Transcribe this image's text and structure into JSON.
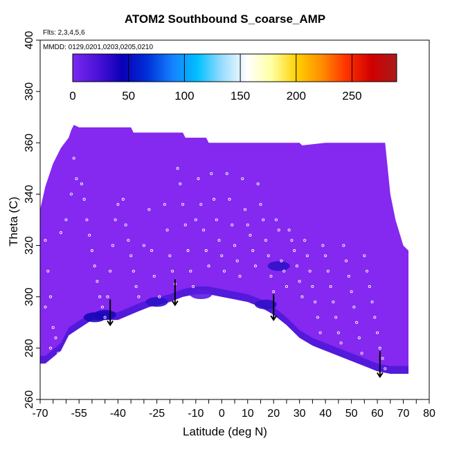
{
  "title": "ATOM2 Southbound S_coarse_AMP",
  "notes": {
    "flights": "Flts: 2,3,4,5,6",
    "dates": "MMDD: 0129,0201,0203,0205,0210"
  },
  "chart_data": {
    "type": "heatmap",
    "title": "ATOM2 Southbound S_coarse_AMP",
    "xlabel": "Latitude (deg N)",
    "ylabel": "Theta (C)",
    "xlim": [
      -70,
      80
    ],
    "ylim": [
      260,
      400
    ],
    "x_ticks": [
      "-70",
      "-65",
      "-60",
      "-55",
      "-50",
      "-45",
      "-40",
      "-35",
      "-30",
      "-25",
      "-20",
      "-15",
      "-10",
      "-5",
      "0",
      "5",
      "10",
      "15",
      "20",
      "25",
      "30",
      "35",
      "40",
      "45",
      "50",
      "55",
      "60",
      "65",
      "70",
      "75",
      "80"
    ],
    "x_tick_labels": [
      "-70",
      "",
      "",
      "-55",
      "",
      "",
      "-40",
      "",
      "",
      "-25",
      "",
      "",
      "-10",
      "",
      "0",
      "",
      "10",
      "",
      "20",
      "",
      "30",
      "",
      "40",
      "",
      "50",
      "",
      "60",
      "",
      "70",
      "",
      "80"
    ],
    "y_ticks": [
      260,
      280,
      300,
      320,
      340,
      360,
      380,
      400
    ],
    "colorbar": {
      "min": 0,
      "max": 290,
      "ticks": [
        0,
        50,
        100,
        150,
        200,
        250
      ],
      "colors": [
        "#7a28f0",
        "#4b12d8",
        "#0a00b8",
        "#0030d8",
        "#1480ff",
        "#00c0ff",
        "#9adcff",
        "#ffffff",
        "#ffffa0",
        "#ffd000",
        "#ff8c00",
        "#ff3000",
        "#d00000",
        "#a81c1c"
      ]
    },
    "background_value_color": "#8528f0",
    "coverage": {
      "upper_boundary": [
        [
          -70,
          334
        ],
        [
          -68,
          343
        ],
        [
          -65,
          352
        ],
        [
          -62,
          358
        ],
        [
          -59,
          362
        ],
        [
          -58,
          365
        ],
        [
          -57,
          367
        ],
        [
          -55,
          366
        ],
        [
          -35,
          366
        ],
        [
          -34,
          364
        ],
        [
          -15,
          364
        ],
        [
          -14,
          362
        ],
        [
          -6,
          362
        ],
        [
          -5,
          360
        ],
        [
          30,
          360
        ],
        [
          31,
          359
        ],
        [
          40,
          360
        ],
        [
          63,
          360
        ],
        [
          64,
          350
        ],
        [
          65,
          340
        ],
        [
          67,
          330
        ],
        [
          70,
          320
        ],
        [
          72,
          318
        ]
      ],
      "lower_boundary": [
        [
          -70,
          274
        ],
        [
          -68,
          274
        ],
        [
          -62,
          279
        ],
        [
          -59,
          285
        ],
        [
          -56,
          287
        ],
        [
          -53,
          289
        ],
        [
          -50,
          291
        ],
        [
          -45,
          291
        ],
        [
          -40,
          291
        ],
        [
          -33,
          294
        ],
        [
          -28,
          296
        ],
        [
          -20,
          298
        ],
        [
          -15,
          300
        ],
        [
          -10,
          301
        ],
        [
          -5,
          301
        ],
        [
          0,
          300
        ],
        [
          5,
          299
        ],
        [
          10,
          298
        ],
        [
          15,
          296
        ],
        [
          20,
          293
        ],
        [
          25,
          289
        ],
        [
          30,
          284
        ],
        [
          35,
          281
        ],
        [
          40,
          279
        ],
        [
          45,
          277
        ],
        [
          50,
          275
        ],
        [
          55,
          273
        ],
        [
          60,
          271
        ],
        [
          65,
          270
        ],
        [
          72,
          270
        ]
      ]
    },
    "high_value_regions": [
      {
        "lat": -49,
        "theta": 292,
        "value": 40
      },
      {
        "lat": -45,
        "theta": 293,
        "value": 30
      },
      {
        "lat": -25,
        "theta": 298,
        "value": 20
      },
      {
        "lat": -8,
        "theta": 301,
        "value": 15
      },
      {
        "lat": 17,
        "theta": 297,
        "value": 25
      },
      {
        "lat": 22,
        "theta": 312,
        "value": 25
      }
    ],
    "arrows_at_latitude": [
      -43,
      -18,
      20,
      61
    ],
    "sample_points": [
      [
        -68,
        322
      ],
      [
        -67,
        310
      ],
      [
        -66,
        300
      ],
      [
        -68,
        296
      ],
      [
        -65,
        288
      ],
      [
        -64,
        284
      ],
      [
        -66,
        280
      ],
      [
        -63,
        278
      ],
      [
        -62,
        325
      ],
      [
        -60,
        330
      ],
      [
        -58,
        340
      ],
      [
        -57,
        354
      ],
      [
        -56,
        346
      ],
      [
        -54,
        344
      ],
      [
        -53,
        338
      ],
      [
        -52,
        330
      ],
      [
        -51,
        324
      ],
      [
        -50,
        318
      ],
      [
        -49,
        312
      ],
      [
        -48,
        306
      ],
      [
        -47,
        300
      ],
      [
        -46,
        296
      ],
      [
        -45,
        292
      ],
      [
        -44,
        300
      ],
      [
        -43,
        310
      ],
      [
        -42,
        320
      ],
      [
        -41,
        330
      ],
      [
        -40,
        336
      ],
      [
        -38,
        338
      ],
      [
        -37,
        328
      ],
      [
        -36,
        322
      ],
      [
        -35,
        316
      ],
      [
        -34,
        310
      ],
      [
        -33,
        304
      ],
      [
        -32,
        300
      ],
      [
        -30,
        320
      ],
      [
        -28,
        334
      ],
      [
        -27,
        318
      ],
      [
        -26,
        308
      ],
      [
        -24,
        300
      ],
      [
        -22,
        336
      ],
      [
        -21,
        326
      ],
      [
        -20,
        316
      ],
      [
        -19,
        310
      ],
      [
        -18,
        305
      ],
      [
        -17,
        350
      ],
      [
        -16,
        344
      ],
      [
        -15,
        336
      ],
      [
        -14,
        328
      ],
      [
        -13,
        318
      ],
      [
        -12,
        310
      ],
      [
        -11,
        304
      ],
      [
        -10,
        330
      ],
      [
        -9,
        346
      ],
      [
        -8,
        336
      ],
      [
        -7,
        326
      ],
      [
        -6,
        318
      ],
      [
        -5,
        312
      ],
      [
        -4,
        348
      ],
      [
        -3,
        338
      ],
      [
        -2,
        330
      ],
      [
        -1,
        322
      ],
      [
        0,
        316
      ],
      [
        1,
        310
      ],
      [
        2,
        348
      ],
      [
        3,
        338
      ],
      [
        4,
        328
      ],
      [
        5,
        320
      ],
      [
        6,
        314
      ],
      [
        7,
        308
      ],
      [
        8,
        346
      ],
      [
        9,
        334
      ],
      [
        10,
        328
      ],
      [
        11,
        324
      ],
      [
        12,
        318
      ],
      [
        13,
        312
      ],
      [
        14,
        344
      ],
      [
        15,
        336
      ],
      [
        16,
        330
      ],
      [
        17,
        322
      ],
      [
        18,
        316
      ],
      [
        19,
        308
      ],
      [
        20,
        302
      ],
      [
        21,
        330
      ],
      [
        22,
        326
      ],
      [
        23,
        314
      ],
      [
        24,
        310
      ],
      [
        25,
        304
      ],
      [
        26,
        326
      ],
      [
        27,
        322
      ],
      [
        28,
        318
      ],
      [
        29,
        312
      ],
      [
        30,
        306
      ],
      [
        31,
        300
      ],
      [
        32,
        322
      ],
      [
        33,
        316
      ],
      [
        34,
        310
      ],
      [
        35,
        304
      ],
      [
        36,
        298
      ],
      [
        37,
        292
      ],
      [
        38,
        286
      ],
      [
        39,
        320
      ],
      [
        40,
        316
      ],
      [
        41,
        310
      ],
      [
        42,
        304
      ],
      [
        43,
        298
      ],
      [
        44,
        292
      ],
      [
        45,
        286
      ],
      [
        46,
        282
      ],
      [
        47,
        320
      ],
      [
        48,
        314
      ],
      [
        49,
        308
      ],
      [
        50,
        302
      ],
      [
        51,
        296
      ],
      [
        52,
        290
      ],
      [
        53,
        284
      ],
      [
        54,
        278
      ],
      [
        55,
        316
      ],
      [
        56,
        310
      ],
      [
        57,
        304
      ],
      [
        58,
        298
      ],
      [
        59,
        292
      ],
      [
        60,
        286
      ],
      [
        61,
        280
      ],
      [
        62,
        276
      ],
      [
        63,
        272
      ]
    ]
  }
}
